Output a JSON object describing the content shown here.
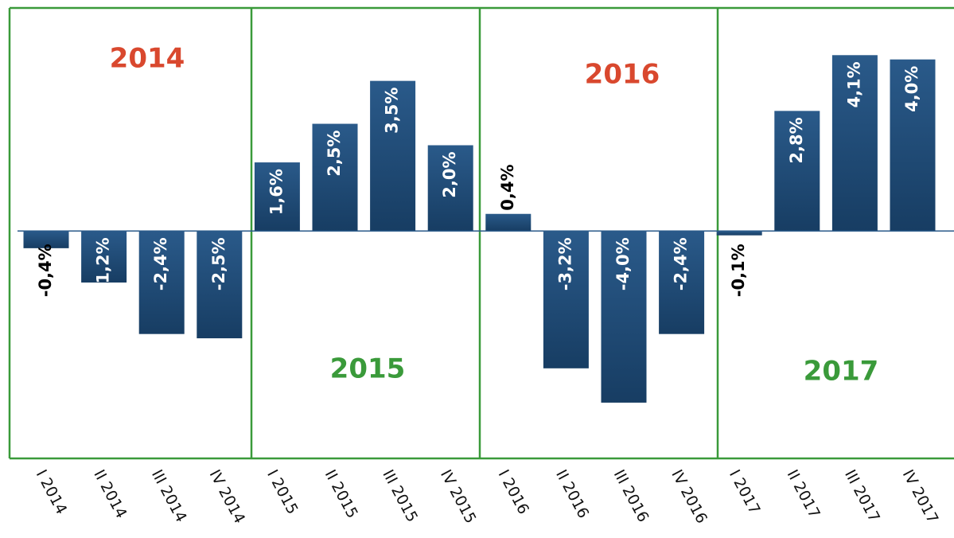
{
  "chart_data": {
    "type": "bar",
    "categories": [
      "I 2014",
      "II 2014",
      "III 2014",
      "IV 2014",
      "I 2015",
      "II 2015",
      "III 2015",
      "IV 2015",
      "I 2016",
      "II 2016",
      "III 2016",
      "IV 2016",
      "I 2017",
      "II 2017",
      "III 2017",
      "IV 2017"
    ],
    "values": [
      -0.4,
      -1.2,
      -2.4,
      -2.5,
      1.6,
      2.5,
      3.5,
      2.0,
      0.4,
      -3.2,
      -4.0,
      -2.4,
      -0.1,
      2.8,
      4.1,
      4.0
    ],
    "value_labels": [
      "-0,4%",
      "-1,2%",
      "-2,4%",
      "-2,5%",
      "1,6%",
      "2,5%",
      "3,5%",
      "2,0%",
      "0,4%",
      "-3,2%",
      "-4,0%",
      "-2,4%",
      "-0,1%",
      "2,8%",
      "4,1%",
      "4,0%"
    ],
    "color": "#1f4e79",
    "ylim": [
      -5.3,
      5.2
    ],
    "annotations": [
      {
        "text": "2014",
        "color": "#d9482e"
      },
      {
        "text": "2015",
        "color": "#3a9a3a"
      },
      {
        "text": "2016",
        "color": "#d9482e"
      },
      {
        "text": "2017",
        "color": "#3a9a3a"
      }
    ]
  }
}
